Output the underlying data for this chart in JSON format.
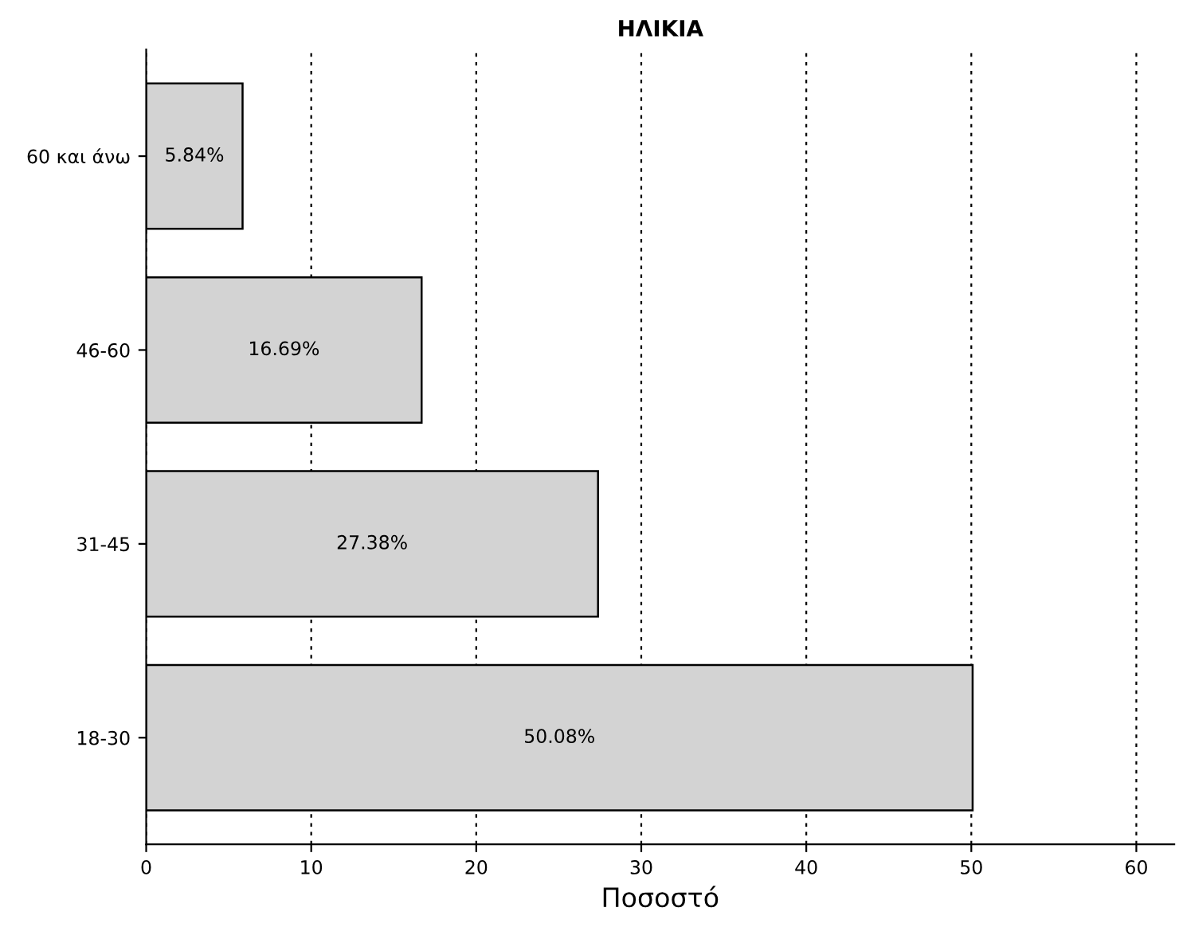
{
  "chart_data": {
    "type": "bar",
    "orientation": "horizontal",
    "title": "ΗΛΙΚΙΑ",
    "xlabel": "Ποσοστό",
    "categories": [
      "60 και άνω",
      "46-60",
      "31-45",
      "18-30"
    ],
    "values": [
      5.84,
      16.69,
      27.38,
      50.08
    ],
    "value_labels": [
      "5.84%",
      "16.69%",
      "27.38%",
      "50.08%"
    ],
    "color": "#d3d3d3",
    "xlim": [
      0,
      62.3
    ],
    "xticks": [
      0,
      10,
      20,
      30,
      40,
      50,
      60
    ],
    "grid": "x",
    "line_style": "dotted"
  }
}
